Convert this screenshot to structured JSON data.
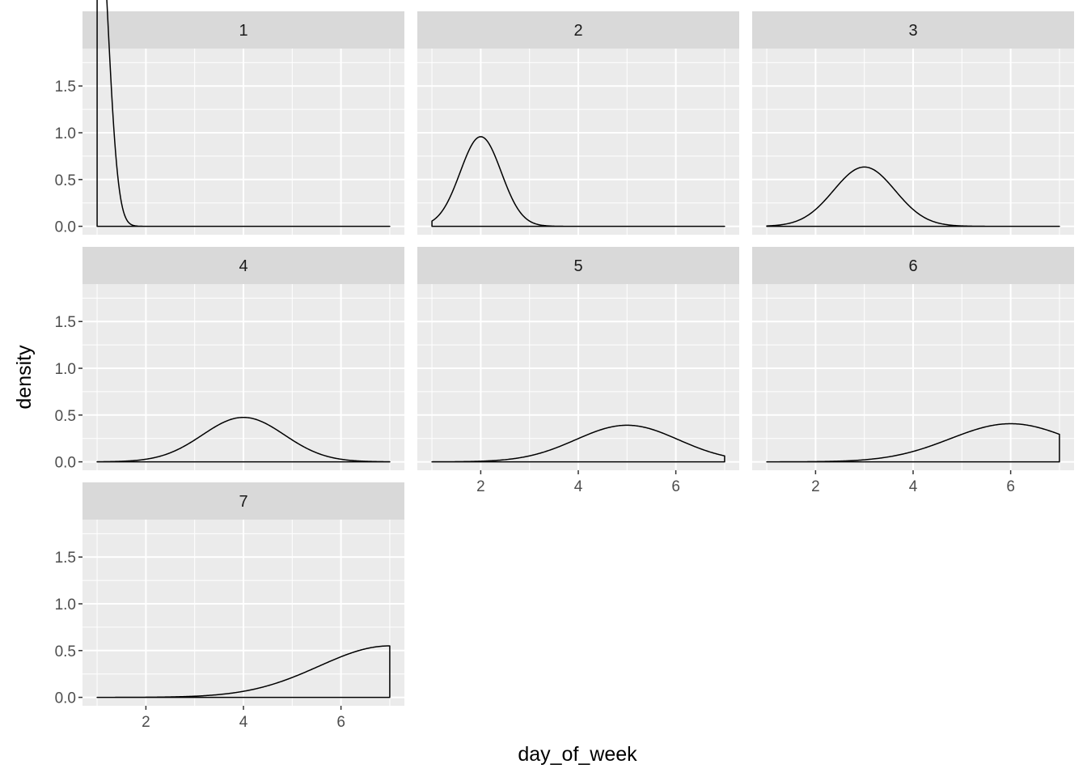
{
  "chart_data": {
    "type": "area",
    "facet_variable": "",
    "xlabel": "day_of_week",
    "ylabel": "density",
    "xlim": [
      0.7,
      7.3
    ],
    "ylim": [
      -0.09,
      1.9
    ],
    "x_ticks": [
      2,
      4,
      6
    ],
    "y_ticks": [
      0.0,
      0.5,
      1.0,
      1.5
    ],
    "y_tick_labels": [
      "0.0",
      "0.5",
      "1.0",
      "1.5"
    ],
    "grid": true,
    "panel_background": "#EBEBEB",
    "strip_background": "#D9D9D9",
    "grid_color": "#FFFFFF",
    "line_color": "#000000",
    "panels": [
      {
        "label": "1",
        "mean": 1.0,
        "sd": 0.215,
        "x_range": [
          1,
          7
        ]
      },
      {
        "label": "2",
        "mean": 2.0,
        "sd": 0.42,
        "x_range": [
          1,
          7
        ]
      },
      {
        "label": "3",
        "mean": 3.0,
        "sd": 0.63,
        "x_range": [
          1,
          7
        ]
      },
      {
        "label": "4",
        "mean": 4.0,
        "sd": 0.84,
        "x_range": [
          1,
          7
        ]
      },
      {
        "label": "5",
        "mean": 5.0,
        "sd": 1.05,
        "x_range": [
          1,
          7
        ]
      },
      {
        "label": "6",
        "mean": 6.0,
        "sd": 1.24,
        "x_range": [
          1,
          7
        ]
      },
      {
        "label": "7",
        "mean": 7.0,
        "sd": 1.45,
        "x_range": [
          1,
          7
        ]
      }
    ]
  }
}
